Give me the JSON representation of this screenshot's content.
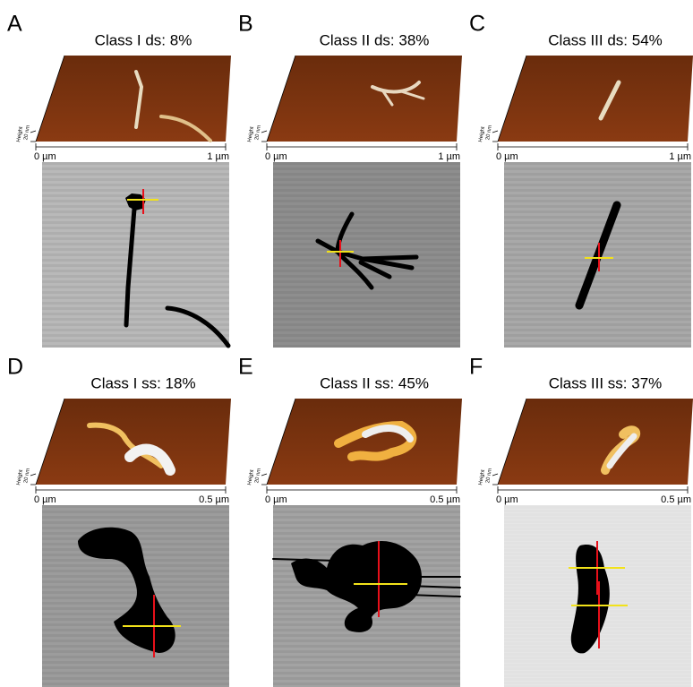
{
  "panels": [
    {
      "letter": "A",
      "title": "Class I ds: 8%",
      "scale_start": "0 µm",
      "scale_end": "1 µm"
    },
    {
      "letter": "B",
      "title": "Class II ds: 38%",
      "scale_start": "0 µm",
      "scale_end": "1 µm"
    },
    {
      "letter": "C",
      "title": "Class III ds: 54%",
      "scale_start": "0 µm",
      "scale_end": "1 µm"
    },
    {
      "letter": "D",
      "title": "Class I ss: 18%",
      "scale_start": "0 µm",
      "scale_end": "0.5 µm"
    },
    {
      "letter": "E",
      "title": "Class II ss: 45%",
      "scale_start": "0 µm",
      "scale_end": "0.5 µm"
    },
    {
      "letter": "F",
      "title": "Class III ss: 37%",
      "scale_start": "0 µm",
      "scale_end": "0.5 µm"
    }
  ],
  "height_label": "Height",
  "height_scale": "20 nm"
}
